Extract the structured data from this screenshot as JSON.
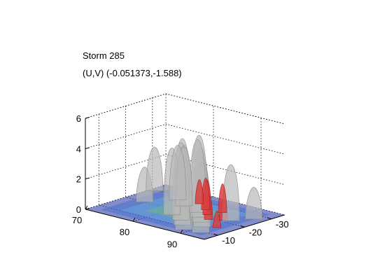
{
  "chart_data": {
    "type": "surface3d",
    "title": "Storm 285",
    "subtitle": "(U,V) (-0.051373,-1.588)",
    "xlabel": "",
    "ylabel": "",
    "zlabel": "",
    "x_ticks": [
      "70",
      "80",
      "90"
    ],
    "y_ticks": [
      "-10",
      "-20",
      "-30"
    ],
    "z_ticks": [
      "0",
      "2",
      "4",
      "6"
    ],
    "xlim": [
      70,
      95
    ],
    "ylim": [
      -35,
      -5
    ],
    "zlim": [
      0,
      6
    ],
    "grid": true,
    "series": [
      {
        "color": "#b8b8b8",
        "peaks": [
          {
            "x": 71,
            "y": -29,
            "z": 2.9
          },
          {
            "x": 74,
            "y": -20,
            "z": 2.3
          },
          {
            "x": 77,
            "y": -27,
            "z": 3.6
          },
          {
            "x": 80,
            "y": -24,
            "z": 3.9
          },
          {
            "x": 82,
            "y": -16,
            "z": 4.4
          },
          {
            "x": 84,
            "y": -22,
            "z": 4.8
          },
          {
            "x": 85,
            "y": -14,
            "z": 5.1
          },
          {
            "x": 86,
            "y": -19,
            "z": 5.4
          },
          {
            "x": 87,
            "y": -11,
            "z": 5.7
          },
          {
            "x": 88,
            "y": -16,
            "z": 4.9
          },
          {
            "x": 89,
            "y": -8,
            "z": 5.6
          },
          {
            "x": 90,
            "y": -13,
            "z": 4.5
          },
          {
            "x": 91,
            "y": -22,
            "z": 3.7
          },
          {
            "x": 92,
            "y": -9,
            "z": 3.2
          },
          {
            "x": 93,
            "y": -27,
            "z": 2.1
          }
        ]
      },
      {
        "color": "#d84040",
        "peaks": [
          {
            "x": 81,
            "y": -28,
            "z": 1.6
          },
          {
            "x": 84,
            "y": -25,
            "z": 2.1
          },
          {
            "x": 86,
            "y": -22,
            "z": 2.3
          },
          {
            "x": 87,
            "y": -26,
            "z": 1.9
          },
          {
            "x": 88,
            "y": -19,
            "z": 1.7
          },
          {
            "x": 90,
            "y": -21,
            "z": 1.4
          },
          {
            "x": 92,
            "y": -15,
            "z": 1.1
          }
        ]
      }
    ],
    "base_colors": [
      "#1e2f9c",
      "#3f6fd0",
      "#6ab0e0",
      "#6cc070"
    ]
  }
}
